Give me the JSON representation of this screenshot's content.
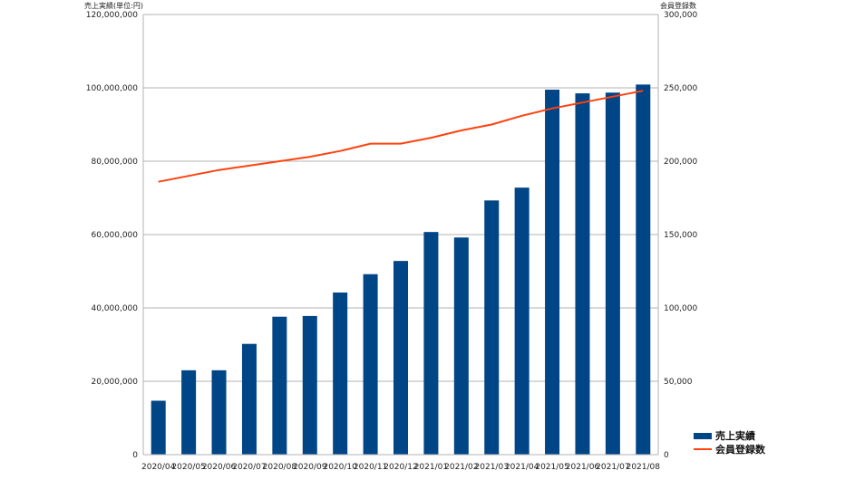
{
  "chart_data": {
    "type": "bar",
    "categories": [
      "2020/04",
      "2020/05",
      "2020/06",
      "2020/07",
      "2020/08",
      "2020/09",
      "2020/10",
      "2020/11",
      "2020/12",
      "2021/01",
      "2021/02",
      "2021/03",
      "2021/04",
      "2021/05",
      "2021/06",
      "2021/07",
      "2021/08"
    ],
    "series": [
      {
        "name": "売上実績",
        "type": "bar",
        "axis": "left",
        "color": "#004586",
        "values": [
          14700000,
          23000000,
          23000000,
          30200000,
          37600000,
          37800000,
          44200000,
          49200000,
          52800000,
          60700000,
          59200000,
          69300000,
          72800000,
          99500000,
          98500000,
          98700000,
          100900000
        ]
      },
      {
        "name": "会員登録数",
        "type": "line",
        "axis": "right",
        "color": "#ff420e",
        "values": [
          186000,
          190000,
          194000,
          197000,
          200000,
          203000,
          207000,
          212000,
          212000,
          216000,
          221000,
          225000,
          231000,
          236000,
          240000,
          244000,
          248000
        ]
      }
    ],
    "ylabel": "売上実績(単位:円)",
    "y2label": "会員登録数",
    "ylim": [
      0,
      120000000
    ],
    "y2lim": [
      0,
      300000
    ],
    "yticks": [
      "0",
      "20,000,000",
      "40,000,000",
      "60,000,000",
      "80,000,000",
      "100,000,000",
      "120,000,000"
    ],
    "y2ticks": [
      "0",
      "50,000",
      "100,000",
      "150,000",
      "200,000",
      "250,000",
      "300,000"
    ],
    "grid": true,
    "legend": "bottom-right"
  }
}
